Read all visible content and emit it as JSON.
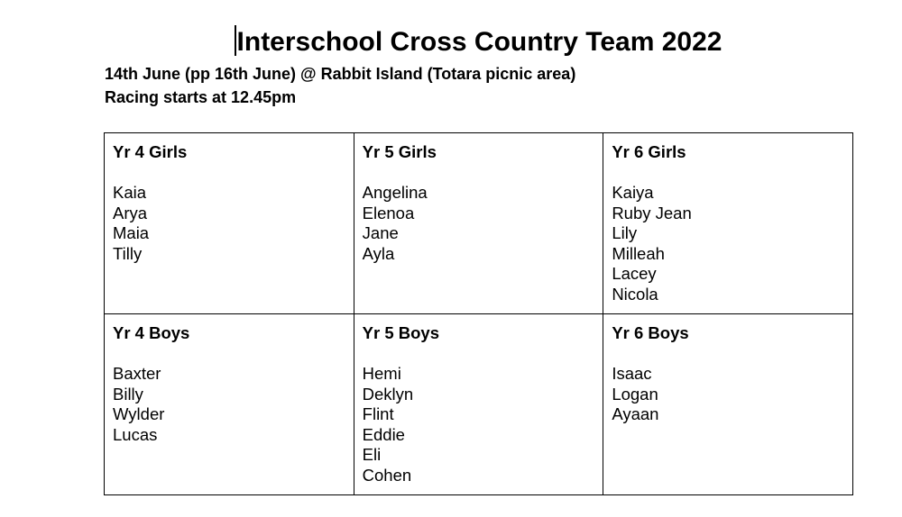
{
  "title": "Interschool Cross Country Team 2022",
  "subtitle_line1": "14th June (pp 16th June) @ Rabbit Island (Totara picnic area)",
  "subtitle_line2": "Racing starts at 12.45pm",
  "teams": [
    {
      "heading": "Yr 4 Girls",
      "members": [
        "Kaia",
        "Arya",
        "Maia",
        "Tilly"
      ]
    },
    {
      "heading": "Yr 5 Girls",
      "members": [
        "Angelina",
        "Elenoa",
        "Jane",
        "Ayla"
      ]
    },
    {
      "heading": "Yr 6 Girls",
      "members": [
        "Kaiya",
        "Ruby Jean",
        "Lily",
        "Milleah",
        "Lacey",
        "Nicola"
      ]
    },
    {
      "heading": "Yr 4 Boys",
      "members": [
        "Baxter",
        "Billy",
        "Wylder",
        "Lucas"
      ]
    },
    {
      "heading": "Yr 5 Boys",
      "members": [
        "Hemi",
        "Deklyn",
        "Flint",
        "Eddie",
        "Eli",
        "Cohen"
      ]
    },
    {
      "heading": "Yr 6 Boys",
      "members": [
        "Isaac",
        "Logan",
        "Ayaan"
      ]
    }
  ]
}
